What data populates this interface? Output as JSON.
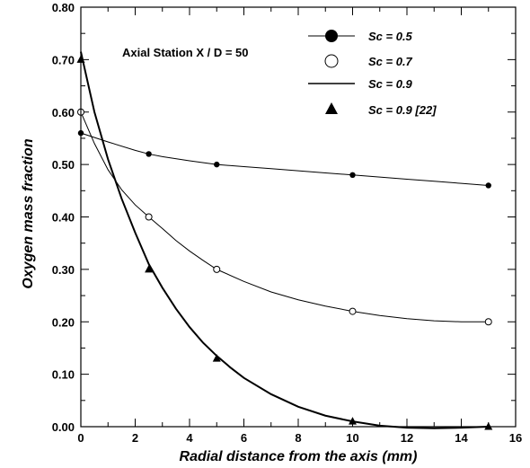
{
  "chart_data": {
    "type": "line",
    "xlabel": "Radial distance from the axis (mm)",
    "ylabel": "Oxygen mass fraction",
    "annotation": "Axial Station X / D = 50",
    "xlim": [
      0,
      16
    ],
    "ylim": [
      0,
      0.8
    ],
    "x_ticks": [
      "0",
      "2",
      "4",
      "6",
      "8",
      "10",
      "12",
      "14",
      "16"
    ],
    "y_ticks": [
      "0.00",
      "0.10",
      "0.20",
      "0.30",
      "0.40",
      "0.50",
      "0.60",
      "0.70",
      "0.80"
    ],
    "legend_position": "top-right",
    "series": [
      {
        "name": "Sc = 0.5",
        "marker": "filled-circle",
        "line": "thin",
        "points": [
          [
            0,
            0.56
          ],
          [
            2.5,
            0.52
          ],
          [
            5,
            0.5
          ],
          [
            10,
            0.48
          ],
          [
            15,
            0.46
          ]
        ],
        "curve": [
          [
            0,
            0.56
          ],
          [
            1,
            0.543
          ],
          [
            2,
            0.527
          ],
          [
            2.5,
            0.52
          ],
          [
            3,
            0.515
          ],
          [
            4,
            0.507
          ],
          [
            5,
            0.5
          ],
          [
            6,
            0.496
          ],
          [
            7,
            0.492
          ],
          [
            8,
            0.488
          ],
          [
            9,
            0.484
          ],
          [
            10,
            0.48
          ],
          [
            11,
            0.476
          ],
          [
            12,
            0.472
          ],
          [
            13,
            0.468
          ],
          [
            14,
            0.464
          ],
          [
            15,
            0.46
          ]
        ]
      },
      {
        "name": "Sc = 0.7",
        "marker": "open-circle",
        "line": "thin",
        "points": [
          [
            0,
            0.6
          ],
          [
            2.5,
            0.4
          ],
          [
            5,
            0.3
          ],
          [
            10,
            0.22
          ],
          [
            15,
            0.2
          ]
        ],
        "curve": [
          [
            0,
            0.6
          ],
          [
            0.5,
            0.54
          ],
          [
            1,
            0.49
          ],
          [
            1.5,
            0.452
          ],
          [
            2,
            0.423
          ],
          [
            2.5,
            0.4
          ],
          [
            3,
            0.378
          ],
          [
            3.5,
            0.355
          ],
          [
            4,
            0.335
          ],
          [
            4.5,
            0.317
          ],
          [
            5,
            0.3
          ],
          [
            6,
            0.277
          ],
          [
            7,
            0.257
          ],
          [
            8,
            0.242
          ],
          [
            9,
            0.23
          ],
          [
            10,
            0.22
          ],
          [
            11,
            0.212
          ],
          [
            12,
            0.206
          ],
          [
            13,
            0.202
          ],
          [
            14,
            0.2
          ],
          [
            15,
            0.2
          ]
        ]
      },
      {
        "name": "Sc = 0.9",
        "marker": "none",
        "line": "thick",
        "curve": [
          [
            0,
            0.715
          ],
          [
            0.5,
            0.6
          ],
          [
            1,
            0.51
          ],
          [
            1.5,
            0.435
          ],
          [
            2,
            0.37
          ],
          [
            2.5,
            0.31
          ],
          [
            3,
            0.265
          ],
          [
            3.5,
            0.225
          ],
          [
            4,
            0.19
          ],
          [
            4.5,
            0.16
          ],
          [
            5,
            0.135
          ],
          [
            5.5,
            0.113
          ],
          [
            6,
            0.093
          ],
          [
            7,
            0.062
          ],
          [
            8,
            0.038
          ],
          [
            9,
            0.021
          ],
          [
            10,
            0.01
          ],
          [
            10.5,
            0.006
          ],
          [
            11,
            0.002
          ],
          [
            12,
            -0.002
          ],
          [
            13,
            -0.003
          ],
          [
            14,
            -0.002
          ],
          [
            15,
            0.0
          ]
        ]
      },
      {
        "name": "Sc = 0.9 [22]",
        "marker": "filled-triangle",
        "line": "none",
        "points": [
          [
            0,
            0.7
          ],
          [
            2.5,
            0.3
          ],
          [
            5,
            0.13
          ],
          [
            10,
            0.01
          ],
          [
            15,
            0.0
          ]
        ]
      }
    ]
  },
  "colors": {
    "ink": "#000000",
    "background": "#ffffff"
  }
}
